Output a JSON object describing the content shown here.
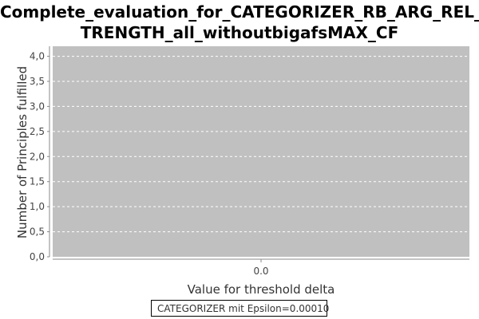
{
  "chart_data": {
    "type": "line",
    "title": "Complete_evaluation_for_CATEGORIZER_RB_ARG_REL_STRENGTH_all_withoutbigafsMAX_CF",
    "title_lines": [
      "Complete_evaluation_for_CATEGORIZER_RB_ARG_REL_S",
      "TRENGTH_all_withoutbigafsMAX_CF"
    ],
    "xlabel": "Value for threshold delta",
    "ylabel": "Number of Principles fulfilled",
    "x_ticks": [
      "0.0"
    ],
    "y_ticks": [
      "0,0",
      "0,5",
      "1,0",
      "1,5",
      "2,0",
      "2,5",
      "3,0",
      "3,5",
      "4,0"
    ],
    "ylim": [
      0,
      4.2
    ],
    "grid": true,
    "legend_position": "bottom",
    "plot_background": "#c0c0c0",
    "grid_color": "#ffffff",
    "series": [
      {
        "name": "CATEGORIZER mit Epsilon=0.00010",
        "color": "#d27a5a",
        "x": [],
        "y": []
      }
    ]
  }
}
